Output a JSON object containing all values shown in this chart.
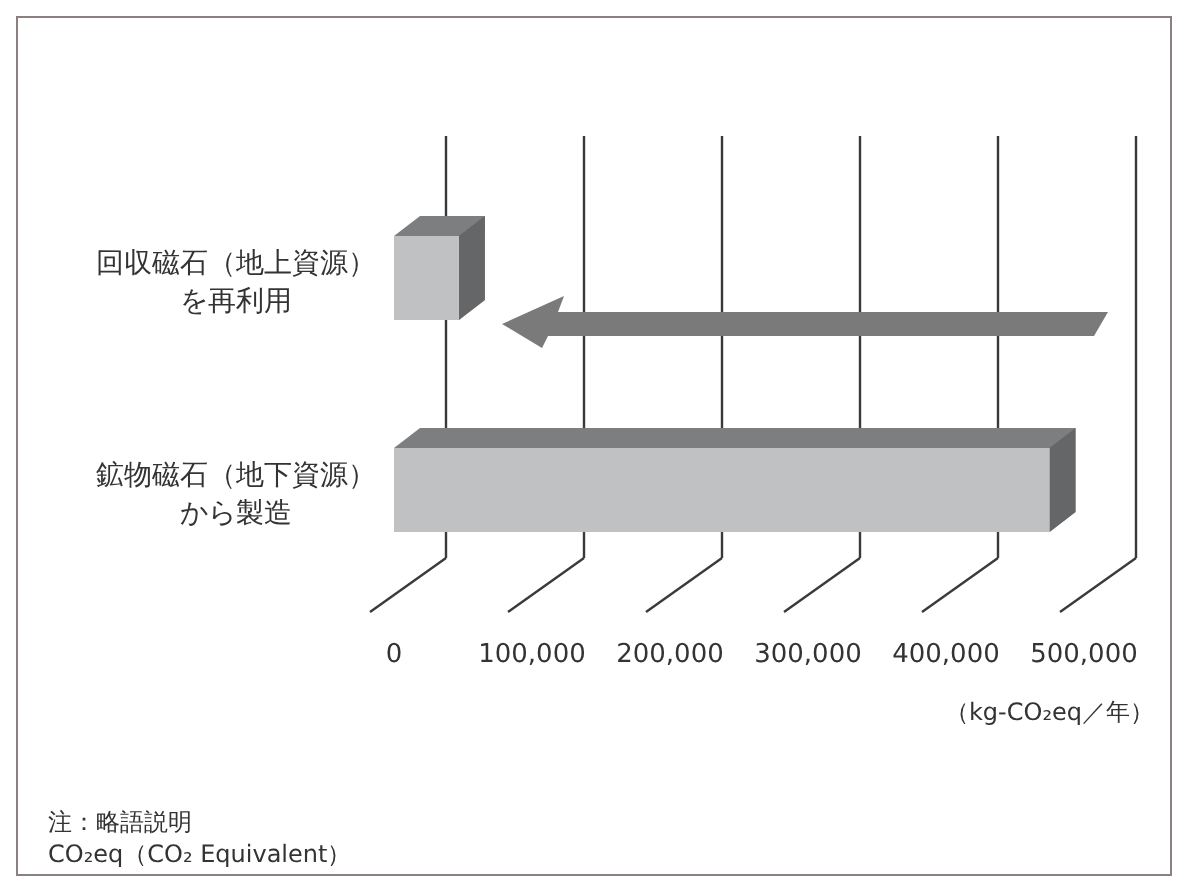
{
  "chart_data": {
    "type": "bar",
    "orientation": "horizontal",
    "categories": [
      "回収磁石（地上資源）を再利用",
      "鉱物磁石（地下資源）から製造"
    ],
    "values": [
      47000,
      475000
    ],
    "color": "#c0c1c3",
    "xlim": [
      0,
      500000
    ],
    "xticks": [
      {
        "value": 0,
        "label": "0"
      },
      {
        "value": 100000,
        "label": "100,000"
      },
      {
        "value": 200000,
        "label": "200,000"
      },
      {
        "value": 300000,
        "label": "300,000"
      },
      {
        "value": 400000,
        "label": "400,000"
      },
      {
        "value": 500000,
        "label": "500,000"
      }
    ],
    "xlabel": "（kg-CO₂eq／年）",
    "grid": "x",
    "annotations": [
      "注：略語説明",
      "CO₂eq（CO₂ Equivalent）"
    ]
  }
}
